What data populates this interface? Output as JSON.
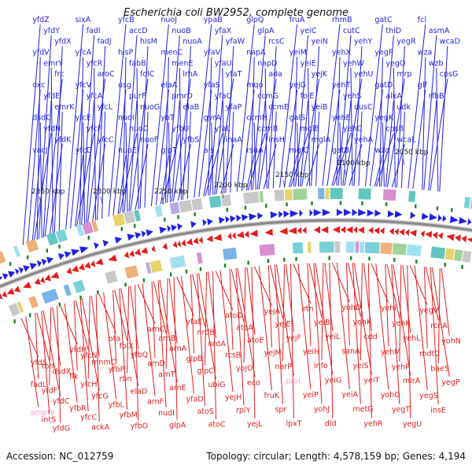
{
  "title": "Escherichia coli BW2952, complete genome",
  "footer": {
    "accession": "Accession: NC_012759",
    "summary": "Topology: circular; Length: 4,578,159 bp; Genes: 4,194"
  },
  "colors": {
    "forward_strand": "#1f1fe6",
    "reverse_strand": "#e61c1c",
    "backbone": "#888888",
    "gc_marker": "#1a8a1a",
    "rna_gene": "#ff9ad6"
  },
  "scale_labels": [
    "2350 kbp",
    "2300 kbp",
    "2250 kbp",
    "2200 kbp",
    "2150 kbp",
    "2100 kbp",
    "2050 kbp"
  ],
  "forward_genes": [
    "yfdZ",
    "yfdY",
    "yfdX",
    "yfdV",
    "emrY",
    "frc",
    "oxc",
    "yfdE",
    "emrK",
    "dsdC",
    "yfdN",
    "yfdK",
    "vacJ",
    "sixA",
    "fadI",
    "fadJ",
    "yfcA",
    "yfcR",
    "aroC",
    "yfcV",
    "yfcA",
    "yfcL",
    "yfcE",
    "yfcF",
    "yfcC",
    "yfcD",
    "yfcB",
    "accD",
    "hisM",
    "hisP",
    "fabB",
    "folC",
    "usg",
    "purF",
    "nuoG",
    "nuoI",
    "nuoC",
    "nuoF",
    "nuoE",
    "nuoJ",
    "nuoB",
    "nuoA",
    "menC",
    "menE",
    "lrhA",
    "elaA",
    "pmrD",
    "elaB",
    "ybT",
    "yfbU",
    "yfbS",
    "glpT",
    "ypaB",
    "yfaX",
    "yfaW",
    "yfaV",
    "yfaU",
    "yfaT",
    "yfaS",
    "yfaQ",
    "yfaP",
    "gyrA",
    "yfaL",
    "inaA",
    "ais",
    "glpQ",
    "glpA",
    "rcsC",
    "napA",
    "napD",
    "ada",
    "mqo",
    "ccmG",
    "ccmE",
    "ccmH",
    "ccmB",
    "insH",
    "rsuA",
    "fruA",
    "yeiC",
    "yeiN",
    "yeiM",
    "yeiE",
    "yejK",
    "yejG",
    "folE",
    "yeiB",
    "galS",
    "mglB",
    "mglA",
    "mglC",
    "rhmB",
    "cutC",
    "yehY",
    "yehX",
    "yehW",
    "yehU",
    "yehT",
    "yehS",
    "dusC",
    "yehE",
    "yehC",
    "yehA",
    "gatB",
    "gatC",
    "thiD",
    "yegR",
    "yegP",
    "yegO",
    "mrp",
    "gatD",
    "alkA",
    "udk",
    "yegK",
    "cpsB",
    "wcaL",
    "wzc",
    "fcl",
    "asmA",
    "wcaD",
    "wza",
    "wzb",
    "cpsG",
    "glf",
    "rfbB"
  ],
  "reverse_genes": [
    "yfdS",
    "torI",
    "dsdX",
    "fadL",
    "yfdF",
    "yfdC",
    "ampW",
    "intS",
    "yfdG",
    "yfdH",
    "yfcN",
    "mnmC",
    "flk",
    "yfcH",
    "yfcG",
    "yfbR",
    "yfcC",
    "ackA",
    "pta",
    "folX",
    "yfbQ",
    "yfbP",
    "rbn",
    "elaD",
    "yfbL",
    "yfbM",
    "yfbO",
    "arnC",
    "arnB",
    "arnA",
    "arnD",
    "arnT",
    "arnE",
    "arnF",
    "nudI",
    "glpA",
    "yfaE",
    "nrdB",
    "nrdA",
    "glpB",
    "glpC",
    "ubiG",
    "yfaD",
    "atoS",
    "atoC",
    "atoD",
    "atoA",
    "atoE",
    "rcsB",
    "yojO",
    "eco",
    "yejH",
    "rplY",
    "yejL",
    "yejA",
    "yejE",
    "yejF",
    "yejM",
    "narP",
    "proL",
    "fruK",
    "spr",
    "lpxT",
    "rtn",
    "yeiB",
    "yeiL",
    "yeiH",
    "info",
    "yeiG",
    "yeiP",
    "yohJ",
    "dld",
    "yohD",
    "yohK",
    "cdd",
    "sanA",
    "yeiS",
    "yeiT",
    "yeiA",
    "metG",
    "yehR",
    "yehI",
    "yehK",
    "yehL",
    "yehM",
    "yehP",
    "mlrA",
    "yohO",
    "yegT",
    "yegU",
    "yegV",
    "rcnA",
    "yohN",
    "mdtC",
    "baeS",
    "yegP",
    "yegS",
    "insE"
  ]
}
